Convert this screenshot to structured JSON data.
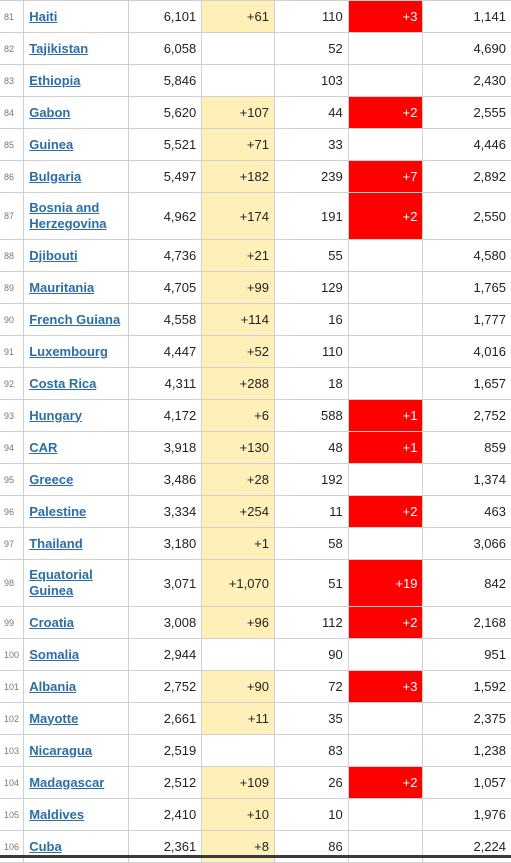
{
  "table": {
    "rows": [
      {
        "rank": "81",
        "country": "Haiti",
        "cases": "6,101",
        "new_cases": "+61",
        "deaths": "110",
        "new_deaths": "+3",
        "per_million": "1,141"
      },
      {
        "rank": "82",
        "country": "Tajikistan",
        "cases": "6,058",
        "new_cases": "",
        "deaths": "52",
        "new_deaths": "",
        "per_million": "4,690"
      },
      {
        "rank": "83",
        "country": "Ethiopia",
        "cases": "5,846",
        "new_cases": "",
        "deaths": "103",
        "new_deaths": "",
        "per_million": "2,430"
      },
      {
        "rank": "84",
        "country": "Gabon",
        "cases": "5,620",
        "new_cases": "+107",
        "deaths": "44",
        "new_deaths": "+2",
        "per_million": "2,555"
      },
      {
        "rank": "85",
        "country": "Guinea",
        "cases": "5,521",
        "new_cases": "+71",
        "deaths": "33",
        "new_deaths": "",
        "per_million": "4,446"
      },
      {
        "rank": "86",
        "country": "Bulgaria",
        "cases": "5,497",
        "new_cases": "+182",
        "deaths": "239",
        "new_deaths": "+7",
        "per_million": "2,892"
      },
      {
        "rank": "87",
        "country": "Bosnia and Herzegovina",
        "cases": "4,962",
        "new_cases": "+174",
        "deaths": "191",
        "new_deaths": "+2",
        "per_million": "2,550"
      },
      {
        "rank": "88",
        "country": "Djibouti",
        "cases": "4,736",
        "new_cases": "+21",
        "deaths": "55",
        "new_deaths": "",
        "per_million": "4,580"
      },
      {
        "rank": "89",
        "country": "Mauritania",
        "cases": "4,705",
        "new_cases": "+99",
        "deaths": "129",
        "new_deaths": "",
        "per_million": "1,765"
      },
      {
        "rank": "90",
        "country": "French Guiana",
        "cases": "4,558",
        "new_cases": "+114",
        "deaths": "16",
        "new_deaths": "",
        "per_million": "1,777"
      },
      {
        "rank": "91",
        "country": "Luxembourg",
        "cases": "4,447",
        "new_cases": "+52",
        "deaths": "110",
        "new_deaths": "",
        "per_million": "4,016"
      },
      {
        "rank": "92",
        "country": "Costa Rica",
        "cases": "4,311",
        "new_cases": "+288",
        "deaths": "18",
        "new_deaths": "",
        "per_million": "1,657"
      },
      {
        "rank": "93",
        "country": "Hungary",
        "cases": "4,172",
        "new_cases": "+6",
        "deaths": "588",
        "new_deaths": "+1",
        "per_million": "2,752"
      },
      {
        "rank": "94",
        "country": "CAR",
        "cases": "3,918",
        "new_cases": "+130",
        "deaths": "48",
        "new_deaths": "+1",
        "per_million": "859"
      },
      {
        "rank": "95",
        "country": "Greece",
        "cases": "3,486",
        "new_cases": "+28",
        "deaths": "192",
        "new_deaths": "",
        "per_million": "1,374"
      },
      {
        "rank": "96",
        "country": "Palestine",
        "cases": "3,334",
        "new_cases": "+254",
        "deaths": "11",
        "new_deaths": "+2",
        "per_million": "463"
      },
      {
        "rank": "97",
        "country": "Thailand",
        "cases": "3,180",
        "new_cases": "+1",
        "deaths": "58",
        "new_deaths": "",
        "per_million": "3,066"
      },
      {
        "rank": "98",
        "country": "Equatorial Guinea",
        "cases": "3,071",
        "new_cases": "+1,070",
        "deaths": "51",
        "new_deaths": "+19",
        "per_million": "842"
      },
      {
        "rank": "99",
        "country": "Croatia",
        "cases": "3,008",
        "new_cases": "+96",
        "deaths": "112",
        "new_deaths": "+2",
        "per_million": "2,168"
      },
      {
        "rank": "100",
        "country": "Somalia",
        "cases": "2,944",
        "new_cases": "",
        "deaths": "90",
        "new_deaths": "",
        "per_million": "951"
      },
      {
        "rank": "101",
        "country": "Albania",
        "cases": "2,752",
        "new_cases": "+90",
        "deaths": "72",
        "new_deaths": "+3",
        "per_million": "1,592"
      },
      {
        "rank": "102",
        "country": "Mayotte",
        "cases": "2,661",
        "new_cases": "+11",
        "deaths": "35",
        "new_deaths": "",
        "per_million": "2,375"
      },
      {
        "rank": "103",
        "country": "Nicaragua",
        "cases": "2,519",
        "new_cases": "",
        "deaths": "83",
        "new_deaths": "",
        "per_million": "1,238"
      },
      {
        "rank": "104",
        "country": "Madagascar",
        "cases": "2,512",
        "new_cases": "+109",
        "deaths": "26",
        "new_deaths": "+2",
        "per_million": "1,057"
      },
      {
        "rank": "105",
        "country": "Maldives",
        "cases": "2,410",
        "new_cases": "+10",
        "deaths": "10",
        "new_deaths": "",
        "per_million": "1,976"
      },
      {
        "rank": "106",
        "country": "Cuba",
        "cases": "2,361",
        "new_cases": "+8",
        "deaths": "86",
        "new_deaths": "",
        "per_million": "2,224"
      }
    ]
  },
  "colors": {
    "new_cases_highlight": "#fff0b9",
    "new_deaths_highlight": "#ff0000",
    "link": "#2c6ea6"
  }
}
